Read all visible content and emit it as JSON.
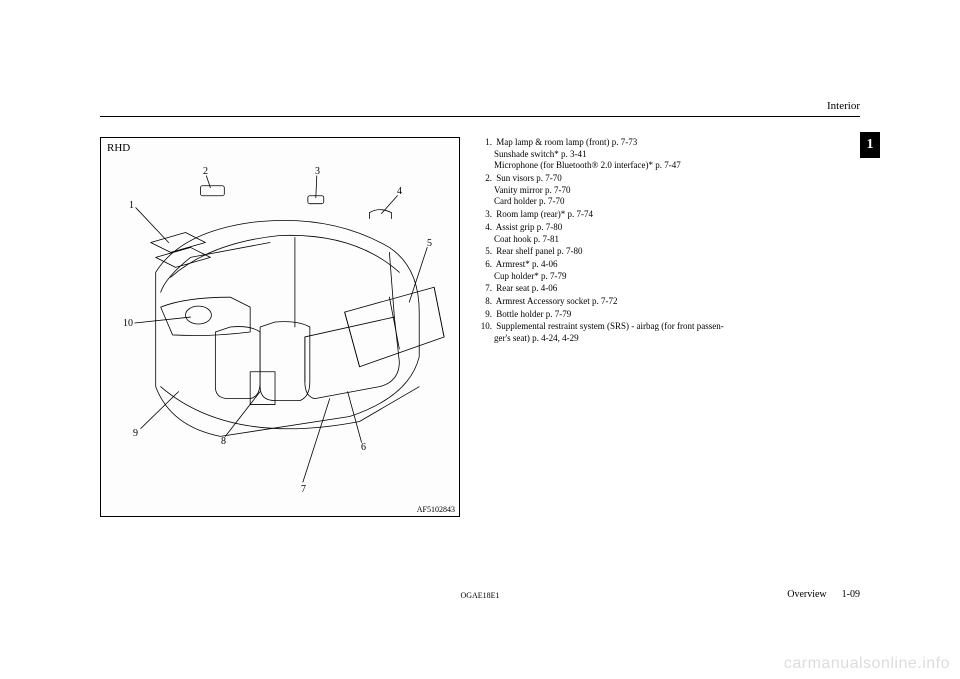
{
  "header": {
    "section": "Interior",
    "tab": "1"
  },
  "figure": {
    "variant": "RHD",
    "id": "AF5102843",
    "callouts": {
      "c1": "1",
      "c2": "2",
      "c3": "3",
      "c4": "4",
      "c5": "5",
      "c6": "6",
      "c7": "7",
      "c8": "8",
      "c9": "9",
      "c10": "10"
    },
    "stroke": "#000000",
    "fill": "#ffffff",
    "stroke_width": 0.8
  },
  "list": [
    {
      "n": "1.",
      "lines": [
        "Map lamp & room lamp (front) p. 7-73",
        "Sunshade switch* p. 3-41",
        "Microphone (for Bluetooth® 2.0 interface)* p. 7-47"
      ]
    },
    {
      "n": "2.",
      "lines": [
        "Sun visors p. 7-70",
        "Vanity mirror p. 7-70",
        "Card holder p. 7-70"
      ]
    },
    {
      "n": "3.",
      "lines": [
        "Room lamp (rear)* p. 7-74"
      ]
    },
    {
      "n": "4.",
      "lines": [
        "Assist grip p. 7-80",
        "Coat hook p. 7-81"
      ]
    },
    {
      "n": "5.",
      "lines": [
        "Rear shelf panel p. 7-80"
      ]
    },
    {
      "n": "6.",
      "lines": [
        "Armrest* p. 4-06",
        "Cup holder* p. 7-79"
      ]
    },
    {
      "n": "7.",
      "lines": [
        "Rear seat p. 4-06"
      ]
    },
    {
      "n": "8.",
      "lines": [
        "Armrest Accessory socket p. 7-72"
      ]
    },
    {
      "n": "9.",
      "lines": [
        "Bottle holder p. 7-79"
      ]
    },
    {
      "n": "10.",
      "lines": [
        "Supplemental restraint system (SRS) - airbag (for front passen-",
        "ger's seat) p. 4-24, 4-29"
      ]
    }
  ],
  "footer": {
    "center": "OGAE18E1",
    "right_label": "Overview",
    "right_page": "1-09"
  },
  "watermark": "carmanualsonline.info"
}
